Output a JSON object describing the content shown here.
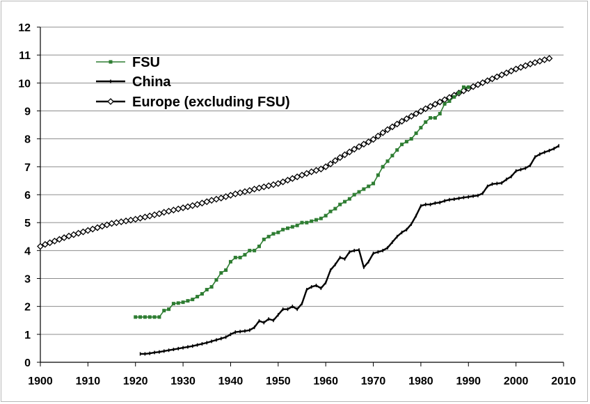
{
  "chart_data": {
    "type": "line",
    "title": "",
    "xlabel": "",
    "ylabel": "",
    "xlim": [
      1900,
      2010
    ],
    "ylim": [
      0,
      12
    ],
    "x_ticks": [
      "1900",
      "1910",
      "1920",
      "1930",
      "1940",
      "1950",
      "1960",
      "1970",
      "1980",
      "1990",
      "2000",
      "2010"
    ],
    "y_ticks": [
      "0",
      "1",
      "2",
      "3",
      "4",
      "5",
      "6",
      "7",
      "8",
      "9",
      "10",
      "11",
      "12"
    ],
    "grid": "horizontal",
    "legend_placement": "top-left",
    "series": [
      {
        "name": "FSU",
        "color": "#2e7d32",
        "marker": "square",
        "points": [
          [
            1920,
            1.62
          ],
          [
            1921,
            1.62
          ],
          [
            1922,
            1.62
          ],
          [
            1923,
            1.62
          ],
          [
            1924,
            1.62
          ],
          [
            1925,
            1.62
          ],
          [
            1926,
            1.85
          ],
          [
            1927,
            1.9
          ],
          [
            1928,
            2.1
          ],
          [
            1929,
            2.12
          ],
          [
            1930,
            2.15
          ],
          [
            1931,
            2.2
          ],
          [
            1932,
            2.25
          ],
          [
            1933,
            2.35
          ],
          [
            1934,
            2.45
          ],
          [
            1935,
            2.6
          ],
          [
            1936,
            2.7
          ],
          [
            1937,
            2.95
          ],
          [
            1938,
            3.2
          ],
          [
            1939,
            3.3
          ],
          [
            1940,
            3.6
          ],
          [
            1941,
            3.75
          ],
          [
            1942,
            3.75
          ],
          [
            1943,
            3.85
          ],
          [
            1944,
            4.0
          ],
          [
            1945,
            4.0
          ],
          [
            1946,
            4.15
          ],
          [
            1947,
            4.4
          ],
          [
            1948,
            4.5
          ],
          [
            1949,
            4.6
          ],
          [
            1950,
            4.65
          ],
          [
            1951,
            4.75
          ],
          [
            1952,
            4.8
          ],
          [
            1953,
            4.85
          ],
          [
            1954,
            4.9
          ],
          [
            1955,
            5.0
          ],
          [
            1956,
            5.0
          ],
          [
            1957,
            5.05
          ],
          [
            1958,
            5.1
          ],
          [
            1959,
            5.15
          ],
          [
            1960,
            5.25
          ],
          [
            1961,
            5.4
          ],
          [
            1962,
            5.5
          ],
          [
            1963,
            5.65
          ],
          [
            1964,
            5.75
          ],
          [
            1965,
            5.85
          ],
          [
            1966,
            6.0
          ],
          [
            1967,
            6.1
          ],
          [
            1968,
            6.2
          ],
          [
            1969,
            6.3
          ],
          [
            1970,
            6.4
          ],
          [
            1971,
            6.7
          ],
          [
            1972,
            7.0
          ],
          [
            1973,
            7.2
          ],
          [
            1974,
            7.4
          ],
          [
            1975,
            7.6
          ],
          [
            1976,
            7.8
          ],
          [
            1977,
            7.9
          ],
          [
            1978,
            8.0
          ],
          [
            1979,
            8.2
          ],
          [
            1980,
            8.4
          ],
          [
            1981,
            8.6
          ],
          [
            1982,
            8.75
          ],
          [
            1983,
            8.75
          ],
          [
            1984,
            8.9
          ],
          [
            1985,
            9.25
          ],
          [
            1986,
            9.35
          ],
          [
            1987,
            9.5
          ],
          [
            1988,
            9.65
          ],
          [
            1989,
            9.85
          ],
          [
            1990,
            9.85
          ]
        ]
      },
      {
        "name": "China",
        "color": "#000000",
        "marker": "dash",
        "points": [
          [
            1921,
            0.3
          ],
          [
            1922,
            0.3
          ],
          [
            1923,
            0.32
          ],
          [
            1924,
            0.35
          ],
          [
            1925,
            0.37
          ],
          [
            1926,
            0.4
          ],
          [
            1927,
            0.43
          ],
          [
            1928,
            0.46
          ],
          [
            1929,
            0.49
          ],
          [
            1930,
            0.52
          ],
          [
            1931,
            0.55
          ],
          [
            1932,
            0.58
          ],
          [
            1933,
            0.62
          ],
          [
            1934,
            0.66
          ],
          [
            1935,
            0.7
          ],
          [
            1936,
            0.75
          ],
          [
            1937,
            0.8
          ],
          [
            1938,
            0.85
          ],
          [
            1939,
            0.9
          ],
          [
            1940,
            1.0
          ],
          [
            1941,
            1.08
          ],
          [
            1942,
            1.1
          ],
          [
            1943,
            1.12
          ],
          [
            1944,
            1.15
          ],
          [
            1945,
            1.25
          ],
          [
            1946,
            1.48
          ],
          [
            1947,
            1.42
          ],
          [
            1948,
            1.55
          ],
          [
            1949,
            1.5
          ],
          [
            1950,
            1.7
          ],
          [
            1951,
            1.9
          ],
          [
            1952,
            1.9
          ],
          [
            1953,
            2.0
          ],
          [
            1954,
            1.9
          ],
          [
            1955,
            2.1
          ],
          [
            1956,
            2.6
          ],
          [
            1957,
            2.7
          ],
          [
            1958,
            2.75
          ],
          [
            1959,
            2.65
          ],
          [
            1960,
            2.85
          ],
          [
            1961,
            3.3
          ],
          [
            1962,
            3.5
          ],
          [
            1963,
            3.75
          ],
          [
            1964,
            3.7
          ],
          [
            1965,
            3.95
          ],
          [
            1966,
            4.0
          ],
          [
            1967,
            4.02
          ],
          [
            1968,
            3.4
          ],
          [
            1969,
            3.6
          ],
          [
            1970,
            3.9
          ],
          [
            1971,
            3.95
          ],
          [
            1972,
            4.0
          ],
          [
            1973,
            4.1
          ],
          [
            1974,
            4.3
          ],
          [
            1975,
            4.5
          ],
          [
            1976,
            4.65
          ],
          [
            1977,
            4.75
          ],
          [
            1978,
            4.95
          ],
          [
            1979,
            5.25
          ],
          [
            1980,
            5.6
          ],
          [
            1981,
            5.65
          ],
          [
            1982,
            5.65
          ],
          [
            1983,
            5.7
          ],
          [
            1984,
            5.72
          ],
          [
            1985,
            5.78
          ],
          [
            1986,
            5.82
          ],
          [
            1987,
            5.84
          ],
          [
            1988,
            5.87
          ],
          [
            1989,
            5.9
          ],
          [
            1990,
            5.92
          ],
          [
            1991,
            5.95
          ],
          [
            1992,
            5.97
          ],
          [
            1993,
            6.05
          ],
          [
            1994,
            6.3
          ],
          [
            1995,
            6.38
          ],
          [
            1996,
            6.4
          ],
          [
            1997,
            6.42
          ],
          [
            1998,
            6.55
          ],
          [
            1999,
            6.65
          ],
          [
            2000,
            6.85
          ],
          [
            2001,
            6.9
          ],
          [
            2002,
            6.95
          ],
          [
            2003,
            7.05
          ],
          [
            2004,
            7.35
          ],
          [
            2005,
            7.45
          ],
          [
            2006,
            7.52
          ],
          [
            2007,
            7.58
          ],
          [
            2008,
            7.65
          ],
          [
            2009,
            7.75
          ]
        ]
      },
      {
        "name": "Europe (excluding FSU)",
        "color": "#000000",
        "marker": "diamond",
        "points": [
          [
            1900,
            4.15
          ],
          [
            1901,
            4.22
          ],
          [
            1902,
            4.28
          ],
          [
            1903,
            4.34
          ],
          [
            1904,
            4.4
          ],
          [
            1905,
            4.46
          ],
          [
            1906,
            4.52
          ],
          [
            1907,
            4.57
          ],
          [
            1908,
            4.62
          ],
          [
            1909,
            4.67
          ],
          [
            1910,
            4.72
          ],
          [
            1911,
            4.77
          ],
          [
            1912,
            4.82
          ],
          [
            1913,
            4.87
          ],
          [
            1914,
            4.92
          ],
          [
            1915,
            4.97
          ],
          [
            1916,
            5.0
          ],
          [
            1917,
            5.03
          ],
          [
            1918,
            5.06
          ],
          [
            1919,
            5.09
          ],
          [
            1920,
            5.12
          ],
          [
            1921,
            5.16
          ],
          [
            1922,
            5.2
          ],
          [
            1923,
            5.24
          ],
          [
            1924,
            5.28
          ],
          [
            1925,
            5.32
          ],
          [
            1926,
            5.37
          ],
          [
            1927,
            5.41
          ],
          [
            1928,
            5.45
          ],
          [
            1929,
            5.49
          ],
          [
            1930,
            5.53
          ],
          [
            1931,
            5.57
          ],
          [
            1932,
            5.61
          ],
          [
            1933,
            5.65
          ],
          [
            1934,
            5.7
          ],
          [
            1935,
            5.75
          ],
          [
            1936,
            5.8
          ],
          [
            1937,
            5.84
          ],
          [
            1938,
            5.88
          ],
          [
            1939,
            5.93
          ],
          [
            1940,
            5.98
          ],
          [
            1941,
            6.03
          ],
          [
            1942,
            6.07
          ],
          [
            1943,
            6.11
          ],
          [
            1944,
            6.15
          ],
          [
            1945,
            6.2
          ],
          [
            1946,
            6.24
          ],
          [
            1947,
            6.28
          ],
          [
            1948,
            6.32
          ],
          [
            1949,
            6.36
          ],
          [
            1950,
            6.4
          ],
          [
            1951,
            6.46
          ],
          [
            1952,
            6.52
          ],
          [
            1953,
            6.58
          ],
          [
            1954,
            6.64
          ],
          [
            1955,
            6.7
          ],
          [
            1956,
            6.76
          ],
          [
            1957,
            6.82
          ],
          [
            1958,
            6.87
          ],
          [
            1959,
            6.92
          ],
          [
            1960,
            7.0
          ],
          [
            1961,
            7.1
          ],
          [
            1962,
            7.22
          ],
          [
            1963,
            7.33
          ],
          [
            1964,
            7.43
          ],
          [
            1965,
            7.53
          ],
          [
            1966,
            7.63
          ],
          [
            1967,
            7.72
          ],
          [
            1968,
            7.81
          ],
          [
            1969,
            7.89
          ],
          [
            1970,
            7.98
          ],
          [
            1971,
            8.1
          ],
          [
            1972,
            8.22
          ],
          [
            1973,
            8.33
          ],
          [
            1974,
            8.43
          ],
          [
            1975,
            8.53
          ],
          [
            1976,
            8.63
          ],
          [
            1977,
            8.72
          ],
          [
            1978,
            8.81
          ],
          [
            1979,
            8.9
          ],
          [
            1980,
            8.99
          ],
          [
            1981,
            9.08
          ],
          [
            1982,
            9.16
          ],
          [
            1983,
            9.24
          ],
          [
            1984,
            9.32
          ],
          [
            1985,
            9.4
          ],
          [
            1986,
            9.48
          ],
          [
            1987,
            9.56
          ],
          [
            1988,
            9.64
          ],
          [
            1989,
            9.72
          ],
          [
            1990,
            9.8
          ],
          [
            1991,
            9.87
          ],
          [
            1992,
            9.94
          ],
          [
            1993,
            10.01
          ],
          [
            1994,
            10.08
          ],
          [
            1995,
            10.15
          ],
          [
            1996,
            10.22
          ],
          [
            1997,
            10.29
          ],
          [
            1998,
            10.36
          ],
          [
            1999,
            10.43
          ],
          [
            2000,
            10.5
          ],
          [
            2001,
            10.56
          ],
          [
            2002,
            10.62
          ],
          [
            2003,
            10.68
          ],
          [
            2004,
            10.73
          ],
          [
            2005,
            10.78
          ],
          [
            2006,
            10.83
          ],
          [
            2007,
            10.88
          ]
        ]
      }
    ]
  }
}
